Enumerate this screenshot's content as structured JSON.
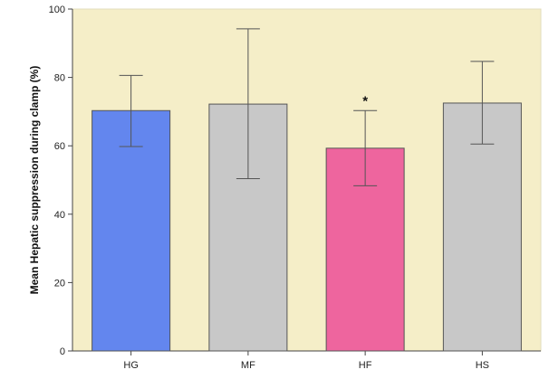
{
  "chart_data": {
    "type": "bar",
    "categories": [
      "HG",
      "MF",
      "HF",
      "HS"
    ],
    "values": [
      70.3,
      72.2,
      59.3,
      72.5
    ],
    "error_low": [
      59.8,
      50.4,
      48.3,
      60.5
    ],
    "error_high": [
      80.6,
      94.2,
      70.3,
      84.7
    ],
    "bar_colors": [
      "#6386ee",
      "#c8c8c8",
      "#ee659e",
      "#c8c8c8"
    ],
    "annotations": [
      {
        "category": "HF",
        "text": "*"
      }
    ],
    "title": "",
    "xlabel": "",
    "ylabel": "Mean Hepatic suppression during clamp (%)",
    "ylim": [
      0,
      100
    ],
    "yticks": [
      0,
      20,
      40,
      60,
      80,
      100
    ],
    "grid": false,
    "plot_background": "#f5eec8"
  }
}
